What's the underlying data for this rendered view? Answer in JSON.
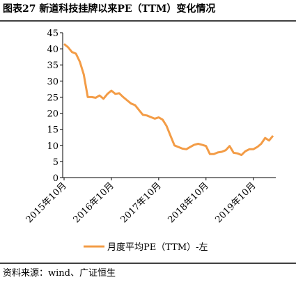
{
  "chart_data": {
    "type": "line",
    "title": "图表27 新道科技挂牌以来PE（TTM）变化情况",
    "source": "资料来源：wind、广证恒生",
    "categories": [
      "2015年10月",
      null,
      null,
      null,
      null,
      null,
      null,
      null,
      null,
      null,
      null,
      null,
      "2016年10月",
      null,
      null,
      null,
      null,
      null,
      null,
      null,
      null,
      null,
      null,
      null,
      "2017年10月",
      null,
      null,
      null,
      null,
      null,
      null,
      null,
      null,
      null,
      null,
      null,
      "2018年10月",
      null,
      null,
      null,
      null,
      null,
      null,
      null,
      null,
      null,
      null,
      null,
      "2019年10月",
      null,
      null,
      null,
      null,
      null
    ],
    "series": [
      {
        "name": "月度平均PE（TTM）-左",
        "color": "#f39c46",
        "values": [
          41.5,
          40.5,
          39,
          38.5,
          36,
          32,
          25,
          25,
          24.8,
          25.5,
          24.5,
          26,
          27,
          26,
          26.2,
          25,
          24,
          23,
          22.5,
          21,
          19.5,
          19.3,
          18.8,
          18.3,
          18.7,
          18,
          16,
          13,
          10,
          9.5,
          9,
          8.8,
          9.5,
          10.2,
          10.5,
          10.2,
          9.8,
          7.3,
          7.3,
          7.8,
          8,
          8.5,
          9.8,
          7.7,
          7.5,
          7,
          8.2,
          8.8,
          8.8,
          9.5,
          10.5,
          12.3,
          11.5,
          13
        ]
      }
    ],
    "ylim": [
      0,
      45
    ],
    "yticks": [
      0,
      5,
      10,
      15,
      20,
      25,
      30,
      35,
      40,
      45
    ],
    "legend": "bottom"
  }
}
